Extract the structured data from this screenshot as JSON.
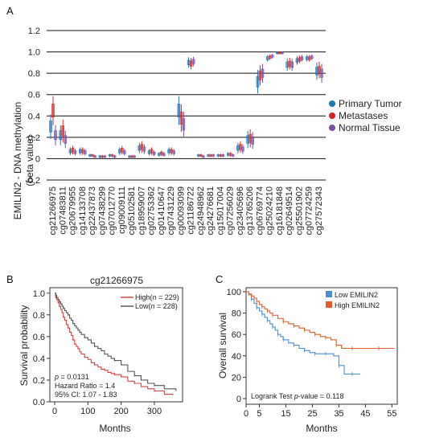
{
  "chart_data": [
    {
      "panel": "A",
      "type": "box",
      "ylabel": "EMILIN2 - DNA methylation\n(beta value)",
      "ylim": [
        -0.2,
        1.2
      ],
      "yticks": [
        "-0.2",
        "0",
        "0.2",
        "0.4",
        "0.6",
        "0.8",
        "1.0",
        "1.2"
      ],
      "grid": true,
      "legend_position": "right",
      "legend": [
        {
          "name": "Primary Tumor",
          "color": "#1f77b4"
        },
        {
          "name": "Metastases",
          "color": "#d62728"
        },
        {
          "name": "Normal Tissue",
          "color": "#7b4fa0"
        }
      ],
      "categories": [
        "cg21266975",
        "cg07483811",
        "cg20679955",
        "cg14133708",
        "cg22437873",
        "cg07438299",
        "cg07012770",
        "cg09009111",
        "cg05102581",
        "cg18959007",
        "cg02753362",
        "cg01410647",
        "cg07431229",
        "cg00093099",
        "cg21186722",
        "cg24948962",
        "cg24276681",
        "cg15017004",
        "cg07256029",
        "cg23405696",
        "cg13765206",
        "cg06769774",
        "cg25024210",
        "cg16181848",
        "cg02649514",
        "cg25501902",
        "cg07724259",
        "cg27572343"
      ],
      "series": [
        {
          "name": "Primary Tumor",
          "values": [
            0.3,
            0.22,
            0.07,
            0.07,
            0.03,
            0.02,
            0.03,
            0.07,
            0.02,
            0.1,
            0.06,
            0.04,
            0.07,
            0.45,
            0.9,
            0.03,
            0.03,
            0.03,
            0.04,
            0.1,
            0.18,
            0.72,
            0.94,
            0.99,
            0.88,
            0.92,
            0.94,
            0.82
          ]
        },
        {
          "name": "Metastases",
          "values": [
            0.45,
            0.26,
            0.08,
            0.07,
            0.03,
            0.02,
            0.03,
            0.08,
            0.02,
            0.11,
            0.07,
            0.05,
            0.07,
            0.38,
            0.89,
            0.03,
            0.03,
            0.03,
            0.04,
            0.11,
            0.19,
            0.78,
            0.95,
            0.99,
            0.89,
            0.93,
            0.94,
            0.83
          ]
        },
        {
          "name": "Normal Tissue",
          "values": [
            0.22,
            0.18,
            0.06,
            0.06,
            0.02,
            0.02,
            0.02,
            0.06,
            0.02,
            0.09,
            0.05,
            0.04,
            0.06,
            0.32,
            0.91,
            0.02,
            0.03,
            0.03,
            0.03,
            0.09,
            0.17,
            0.8,
            0.96,
            0.99,
            0.88,
            0.94,
            0.95,
            0.8
          ]
        }
      ]
    },
    {
      "panel": "B",
      "type": "line",
      "title": "cg21266975",
      "xlabel": "Months",
      "ylabel": "Survival probability",
      "xlim": [
        0,
        380
      ],
      "ylim": [
        0.0,
        1.05
      ],
      "xticks": [
        "0",
        "100",
        "200",
        "300"
      ],
      "yticks": [
        "0.0",
        "0.2",
        "0.4",
        "0.6",
        "0.8",
        "1.0"
      ],
      "legend_position": "top-right",
      "legend_high": "High(",
      "legend_high_n": "n",
      "legend_high_tail": " = 229)",
      "legend_low": "Low(",
      "legend_low_n": "n",
      "legend_low_tail": " = 228)",
      "stats_p_label": "p",
      "stats_p_value": " = 0.0131",
      "stats_hr": "Hazard Ratio = 1.4",
      "stats_ci": "95% CI: 1.07 - 1.83",
      "series": [
        {
          "name": "High",
          "color": "#d0454a",
          "x": [
            0,
            3,
            6,
            10,
            14,
            18,
            22,
            26,
            30,
            35,
            40,
            45,
            50,
            55,
            60,
            65,
            70,
            75,
            80,
            90,
            100,
            110,
            120,
            130,
            140,
            150,
            160,
            170,
            180,
            200,
            220,
            240,
            260,
            280,
            300,
            330,
            355
          ],
          "y": [
            1.0,
            0.96,
            0.94,
            0.91,
            0.88,
            0.85,
            0.82,
            0.78,
            0.75,
            0.71,
            0.68,
            0.64,
            0.61,
            0.57,
            0.53,
            0.51,
            0.49,
            0.46,
            0.44,
            0.41,
            0.39,
            0.36,
            0.34,
            0.32,
            0.3,
            0.29,
            0.27,
            0.26,
            0.25,
            0.23,
            0.19,
            0.17,
            0.14,
            0.12,
            0.1,
            0.07,
            0.06
          ]
        },
        {
          "name": "Low",
          "color": "#555555",
          "x": [
            0,
            3,
            6,
            10,
            14,
            18,
            22,
            26,
            30,
            35,
            40,
            45,
            50,
            55,
            60,
            65,
            70,
            75,
            80,
            90,
            100,
            110,
            120,
            130,
            140,
            150,
            160,
            170,
            180,
            200,
            220,
            240,
            260,
            280,
            300,
            330,
            365
          ],
          "y": [
            1.0,
            0.98,
            0.96,
            0.94,
            0.92,
            0.9,
            0.88,
            0.86,
            0.84,
            0.82,
            0.8,
            0.77,
            0.75,
            0.72,
            0.7,
            0.68,
            0.66,
            0.64,
            0.62,
            0.59,
            0.57,
            0.54,
            0.51,
            0.49,
            0.47,
            0.44,
            0.42,
            0.4,
            0.38,
            0.34,
            0.28,
            0.24,
            0.2,
            0.17,
            0.15,
            0.12,
            0.1
          ]
        }
      ]
    },
    {
      "panel": "C",
      "type": "line",
      "xlabel": "Months",
      "ylabel": "Overall survival",
      "xlim": [
        0,
        57
      ],
      "ylim": [
        0,
        100
      ],
      "xticks": [
        "0",
        "5",
        "15",
        "25",
        "35",
        "45",
        "55"
      ],
      "yticks": [
        "0",
        "20",
        "40",
        "60",
        "80",
        "100"
      ],
      "legend_position": "top-right",
      "logrank_prefix": "Logrank Test ",
      "logrank_p": "p",
      "logrank_suffix": "-value = 0.118",
      "series": [
        {
          "name": "Low EMILIN2",
          "color": "#4a8fd1",
          "x": [
            0,
            1,
            2,
            3,
            4,
            5,
            6,
            7,
            8,
            9,
            10,
            11,
            12,
            13,
            14,
            16,
            18,
            20,
            22,
            24,
            26,
            28,
            30,
            33,
            35,
            37,
            40,
            43
          ],
          "y": [
            100,
            97,
            93,
            89,
            85,
            82,
            79,
            76,
            73,
            70,
            67,
            64,
            60,
            58,
            55,
            52,
            50,
            47,
            45,
            43,
            42,
            42,
            42,
            40,
            31,
            23,
            23,
            23
          ]
        },
        {
          "name": "High EMILIN2",
          "color": "#e15b2b",
          "x": [
            0,
            1,
            2,
            3,
            4,
            5,
            6,
            7,
            8,
            9,
            10,
            12,
            14,
            16,
            18,
            20,
            22,
            24,
            26,
            28,
            30,
            32,
            34,
            36,
            40,
            45,
            50,
            56
          ],
          "y": [
            100,
            98,
            96,
            94,
            91,
            88,
            86,
            84,
            82,
            80,
            78,
            75,
            72,
            70,
            68,
            66,
            64,
            62,
            60,
            58,
            57,
            55,
            50,
            47,
            47,
            47,
            47,
            47
          ]
        }
      ]
    }
  ]
}
